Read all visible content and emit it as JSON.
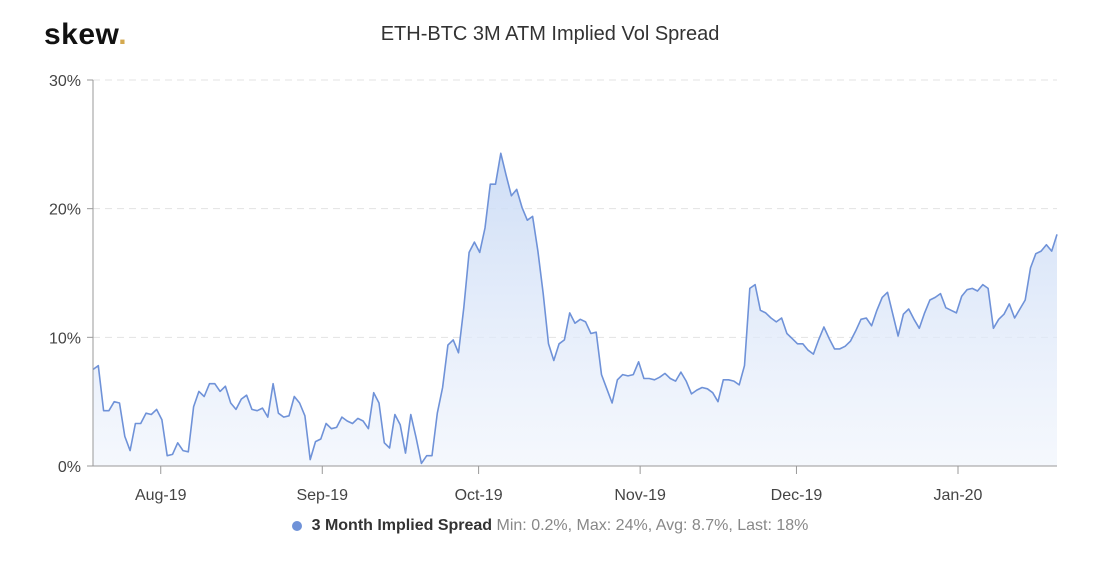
{
  "logo": {
    "text": "skew",
    "dot": "."
  },
  "chart_data": {
    "type": "area",
    "title": "ETH-BTC 3M ATM Implied Vol Spread",
    "xlabel": "",
    "ylabel": "",
    "x_range": [
      "2019-07-19",
      "2020-01-20"
    ],
    "x_ticks": [
      {
        "date": "2019-08-01",
        "label": "Aug-19"
      },
      {
        "date": "2019-09-01",
        "label": "Sep-19"
      },
      {
        "date": "2019-10-01",
        "label": "Oct-19"
      },
      {
        "date": "2019-11-01",
        "label": "Nov-19"
      },
      {
        "date": "2019-12-01",
        "label": "Dec-19"
      },
      {
        "date": "2020-01-01",
        "label": "Jan-20"
      }
    ],
    "ylim": [
      0,
      30
    ],
    "y_ticks": [
      {
        "value": 0,
        "label": "0%"
      },
      {
        "value": 10,
        "label": "10%"
      },
      {
        "value": 20,
        "label": "20%"
      },
      {
        "value": 30,
        "label": "30%"
      }
    ],
    "grid": true,
    "legend_position": "bottom-center",
    "series": [
      {
        "name": "3 Month Implied Spread",
        "color": "#6f92d8",
        "stats": "Min: 0.2%, Max: 24%, Avg: 8.7%, Last: 18%",
        "values": [
          7.5,
          7.8,
          4.3,
          4.3,
          5.0,
          4.9,
          2.3,
          1.2,
          3.3,
          3.3,
          4.1,
          4.0,
          4.4,
          3.6,
          0.8,
          0.9,
          1.8,
          1.2,
          1.1,
          4.6,
          5.8,
          5.4,
          6.4,
          6.4,
          5.8,
          6.2,
          4.9,
          4.4,
          5.2,
          5.5,
          4.4,
          4.3,
          4.5,
          3.8,
          6.4,
          4.1,
          3.8,
          3.9,
          5.4,
          4.9,
          3.9,
          0.5,
          1.9,
          2.1,
          3.3,
          2.9,
          3.0,
          3.8,
          3.5,
          3.3,
          3.7,
          3.5,
          2.9,
          5.7,
          4.9,
          1.8,
          1.4,
          4.0,
          3.2,
          1.0,
          4.0,
          2.2,
          0.2,
          0.8,
          0.8,
          4.1,
          6.1,
          9.4,
          9.8,
          8.8,
          12.3,
          16.6,
          17.4,
          16.6,
          18.5,
          21.9,
          21.9,
          24.3,
          22.6,
          21.0,
          21.5,
          20.1,
          19.1,
          19.4,
          16.7,
          13.4,
          9.5,
          8.2,
          9.5,
          9.8,
          11.9,
          11.1,
          11.4,
          11.2,
          10.3,
          10.4,
          7.1,
          6.0,
          4.9,
          6.7,
          7.1,
          7.0,
          7.1,
          8.1,
          6.8,
          6.8,
          6.7,
          6.9,
          7.2,
          6.8,
          6.6,
          7.3,
          6.6,
          5.6,
          5.9,
          6.1,
          6.0,
          5.7,
          5.0,
          6.7,
          6.7,
          6.6,
          6.3,
          7.8,
          13.8,
          14.1,
          12.1,
          11.9,
          11.5,
          11.2,
          11.5,
          10.3,
          9.9,
          9.5,
          9.5,
          9.0,
          8.7,
          9.8,
          10.8,
          9.9,
          9.1,
          9.1,
          9.3,
          9.7,
          10.5,
          11.4,
          11.5,
          10.9,
          12.1,
          13.1,
          13.5,
          11.8,
          10.1,
          11.8,
          12.2,
          11.4,
          10.7,
          11.9,
          12.9,
          13.1,
          13.4,
          12.3,
          12.1,
          11.9,
          13.2,
          13.7,
          13.8,
          13.6,
          14.1,
          13.8,
          10.7,
          11.4,
          11.8,
          12.6,
          11.5,
          12.2,
          12.9,
          15.4,
          16.5,
          16.7,
          17.2,
          16.7,
          18.0
        ]
      }
    ]
  }
}
